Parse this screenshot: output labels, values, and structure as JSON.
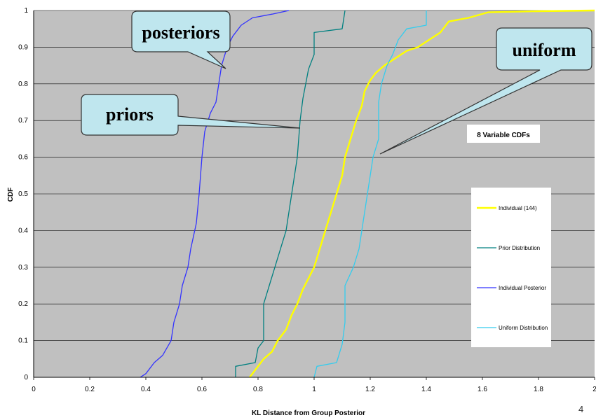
{
  "slide_number": "4",
  "chart_data": {
    "type": "line",
    "title": "8 Variable CDFs",
    "xlabel": "KL Distance from Group Posterior",
    "ylabel": "CDF",
    "xlim": [
      0,
      2
    ],
    "ylim": [
      0,
      1
    ],
    "x_ticks": [
      "0",
      "0.2",
      "0.4",
      "0.6",
      "0.8",
      "1",
      "1.2",
      "1.4",
      "1.6",
      "1.8",
      "2"
    ],
    "y_ticks": [
      "0",
      "0.1",
      "0.2",
      "0.3",
      "0.4",
      "0.5",
      "0.6",
      "0.7",
      "0.8",
      "0.9",
      "1"
    ],
    "grid": "horizontal",
    "background": "#c0c0c0",
    "legend_position": "right",
    "series": [
      {
        "name": "Individual (144)",
        "color": "#ffff00",
        "points": [
          [
            0.77,
            0
          ],
          [
            0.79,
            0.02
          ],
          [
            0.82,
            0.05
          ],
          [
            0.85,
            0.07
          ],
          [
            0.87,
            0.1
          ],
          [
            0.9,
            0.13
          ],
          [
            0.92,
            0.17
          ],
          [
            0.94,
            0.2
          ],
          [
            0.96,
            0.24
          ],
          [
            0.98,
            0.27
          ],
          [
            1.0,
            0.3
          ],
          [
            1.02,
            0.35
          ],
          [
            1.04,
            0.4
          ],
          [
            1.06,
            0.45
          ],
          [
            1.08,
            0.5
          ],
          [
            1.1,
            0.55
          ],
          [
            1.11,
            0.6
          ],
          [
            1.13,
            0.65
          ],
          [
            1.15,
            0.7
          ],
          [
            1.17,
            0.74
          ],
          [
            1.18,
            0.78
          ],
          [
            1.2,
            0.81
          ],
          [
            1.22,
            0.83
          ],
          [
            1.25,
            0.85
          ],
          [
            1.29,
            0.87
          ],
          [
            1.33,
            0.89
          ],
          [
            1.37,
            0.9
          ],
          [
            1.41,
            0.92
          ],
          [
            1.45,
            0.94
          ],
          [
            1.48,
            0.97
          ],
          [
            1.55,
            0.98
          ],
          [
            1.62,
            0.995
          ],
          [
            1.8,
            0.998
          ],
          [
            2.0,
            1.0
          ]
        ]
      },
      {
        "name": "Prior Distribution",
        "color": "#008080",
        "points": [
          [
            0.72,
            0
          ],
          [
            0.72,
            0.03
          ],
          [
            0.79,
            0.04
          ],
          [
            0.8,
            0.08
          ],
          [
            0.82,
            0.1
          ],
          [
            0.82,
            0.2
          ],
          [
            0.84,
            0.25
          ],
          [
            0.86,
            0.3
          ],
          [
            0.88,
            0.35
          ],
          [
            0.9,
            0.4
          ],
          [
            0.91,
            0.45
          ],
          [
            0.92,
            0.5
          ],
          [
            0.93,
            0.55
          ],
          [
            0.94,
            0.6
          ],
          [
            0.95,
            0.7
          ],
          [
            0.96,
            0.76
          ],
          [
            0.97,
            0.8
          ],
          [
            0.98,
            0.84
          ],
          [
            1.0,
            0.88
          ],
          [
            1.0,
            0.94
          ],
          [
            1.1,
            0.95
          ],
          [
            1.11,
            1.0
          ]
        ]
      },
      {
        "name": "Individual Posterior",
        "color": "#3333ff",
        "points": [
          [
            0.38,
            0
          ],
          [
            0.4,
            0.01
          ],
          [
            0.43,
            0.04
          ],
          [
            0.46,
            0.06
          ],
          [
            0.49,
            0.1
          ],
          [
            0.5,
            0.15
          ],
          [
            0.52,
            0.2
          ],
          [
            0.53,
            0.25
          ],
          [
            0.55,
            0.3
          ],
          [
            0.56,
            0.35
          ],
          [
            0.58,
            0.42
          ],
          [
            0.59,
            0.5
          ],
          [
            0.6,
            0.6
          ],
          [
            0.61,
            0.67
          ],
          [
            0.63,
            0.72
          ],
          [
            0.65,
            0.75
          ],
          [
            0.66,
            0.8
          ],
          [
            0.67,
            0.85
          ],
          [
            0.69,
            0.9
          ],
          [
            0.71,
            0.93
          ],
          [
            0.74,
            0.96
          ],
          [
            0.78,
            0.98
          ],
          [
            0.85,
            0.99
          ],
          [
            0.91,
            1.0
          ]
        ]
      },
      {
        "name": "Uniform Distribution",
        "color": "#33ccee",
        "points": [
          [
            1.0,
            0
          ],
          [
            1.01,
            0.03
          ],
          [
            1.08,
            0.04
          ],
          [
            1.1,
            0.09
          ],
          [
            1.11,
            0.15
          ],
          [
            1.11,
            0.25
          ],
          [
            1.14,
            0.3
          ],
          [
            1.16,
            0.35
          ],
          [
            1.17,
            0.4
          ],
          [
            1.18,
            0.45
          ],
          [
            1.19,
            0.5
          ],
          [
            1.2,
            0.55
          ],
          [
            1.21,
            0.6
          ],
          [
            1.23,
            0.65
          ],
          [
            1.23,
            0.75
          ],
          [
            1.24,
            0.8
          ],
          [
            1.26,
            0.85
          ],
          [
            1.28,
            0.88
          ],
          [
            1.3,
            0.92
          ],
          [
            1.33,
            0.95
          ],
          [
            1.4,
            0.96
          ],
          [
            1.4,
            1.0
          ]
        ]
      }
    ],
    "callouts": [
      {
        "text": "posteriors",
        "color": "#bfe6ee"
      },
      {
        "text": "priors",
        "color": "#bfe6ee"
      },
      {
        "text": "uniform",
        "color": "#bfe6ee"
      }
    ]
  }
}
